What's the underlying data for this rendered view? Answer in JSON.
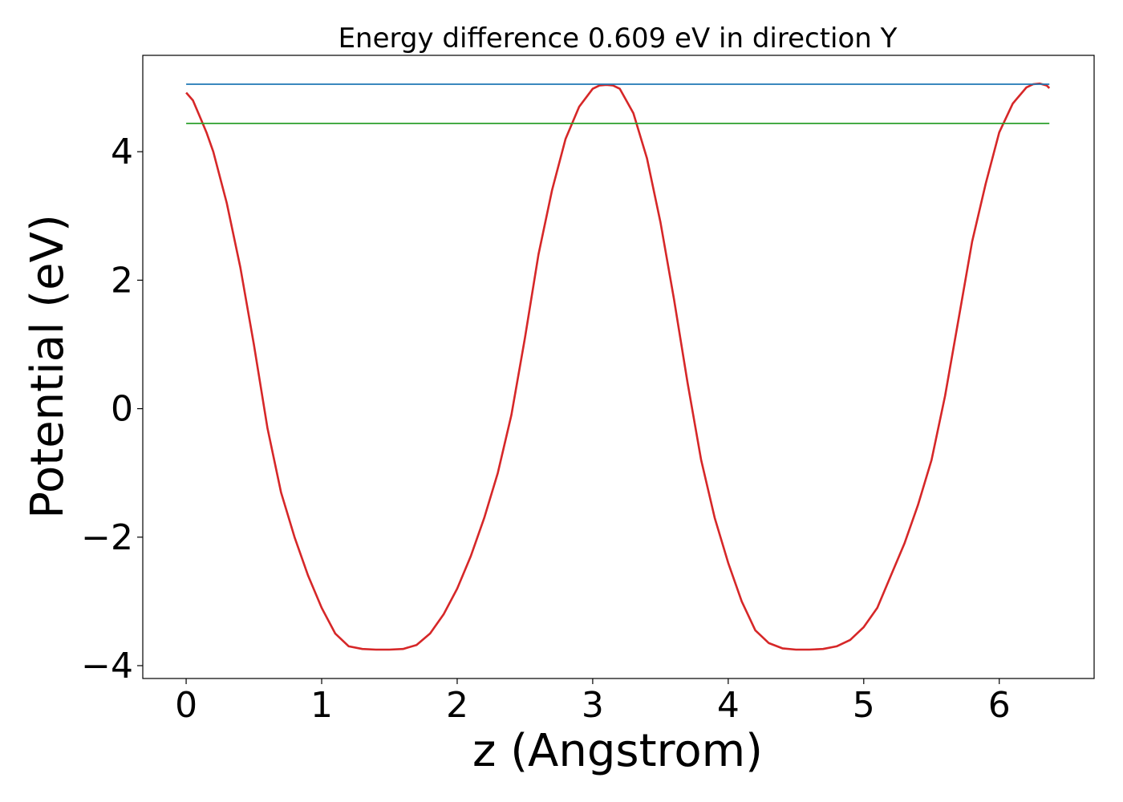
{
  "chart_data": {
    "type": "line",
    "title": "Energy difference 0.609 eV in direction Y",
    "xlabel": "z (Angstrom)",
    "ylabel": "Potential (eV)",
    "xlim": [
      -0.32,
      6.7
    ],
    "ylim": [
      -4.2,
      5.5
    ],
    "xticks": [
      0,
      1,
      2,
      3,
      4,
      5,
      6
    ],
    "yticks": [
      -4,
      -2,
      0,
      2,
      4
    ],
    "xtick_labels": [
      "0",
      "1",
      "2",
      "3",
      "4",
      "5",
      "6"
    ],
    "ytick_labels": [
      "−4",
      "−2",
      "0",
      "2",
      "4"
    ],
    "grid": false,
    "legend": "none",
    "series": [
      {
        "color": "#d62728",
        "x": [
          0.0,
          0.05,
          0.1,
          0.15,
          0.2,
          0.3,
          0.4,
          0.5,
          0.6,
          0.7,
          0.8,
          0.9,
          1.0,
          1.1,
          1.2,
          1.3,
          1.4,
          1.5,
          1.6,
          1.7,
          1.8,
          1.9,
          2.0,
          2.1,
          2.2,
          2.3,
          2.4,
          2.5,
          2.6,
          2.7,
          2.8,
          2.9,
          3.0,
          3.05,
          3.1,
          3.15,
          3.2,
          3.3,
          3.4,
          3.5,
          3.6,
          3.7,
          3.8,
          3.9,
          4.0,
          4.1,
          4.2,
          4.3,
          4.4,
          4.5,
          4.6,
          4.7,
          4.8,
          4.9,
          5.0,
          5.1,
          5.2,
          5.3,
          5.4,
          5.5,
          5.6,
          5.7,
          5.8,
          5.9,
          6.0,
          6.1,
          6.2,
          6.25,
          6.3,
          6.35,
          6.37
        ],
        "y": [
          4.92,
          4.8,
          4.55,
          4.3,
          4.0,
          3.2,
          2.2,
          1.0,
          -0.3,
          -1.3,
          -2.0,
          -2.6,
          -3.1,
          -3.5,
          -3.7,
          -3.74,
          -3.75,
          -3.75,
          -3.74,
          -3.68,
          -3.5,
          -3.2,
          -2.8,
          -2.3,
          -1.7,
          -1.0,
          -0.1,
          1.1,
          2.4,
          3.4,
          4.2,
          4.7,
          4.98,
          5.03,
          5.04,
          5.03,
          4.98,
          4.6,
          3.9,
          2.9,
          1.7,
          0.4,
          -0.8,
          -1.7,
          -2.4,
          -3.0,
          -3.45,
          -3.65,
          -3.73,
          -3.75,
          -3.75,
          -3.74,
          -3.7,
          -3.6,
          -3.4,
          -3.1,
          -2.6,
          -2.1,
          -1.5,
          -0.8,
          0.2,
          1.4,
          2.6,
          3.5,
          4.3,
          4.75,
          5.0,
          5.05,
          5.06,
          5.03,
          4.99
        ]
      },
      {
        "color": "#1f77b4",
        "x": [
          0.0,
          6.37
        ],
        "y": [
          5.05,
          5.05
        ]
      },
      {
        "color": "#2ca02c",
        "x": [
          0.0,
          6.37
        ],
        "y": [
          4.44,
          4.44
        ]
      }
    ]
  }
}
